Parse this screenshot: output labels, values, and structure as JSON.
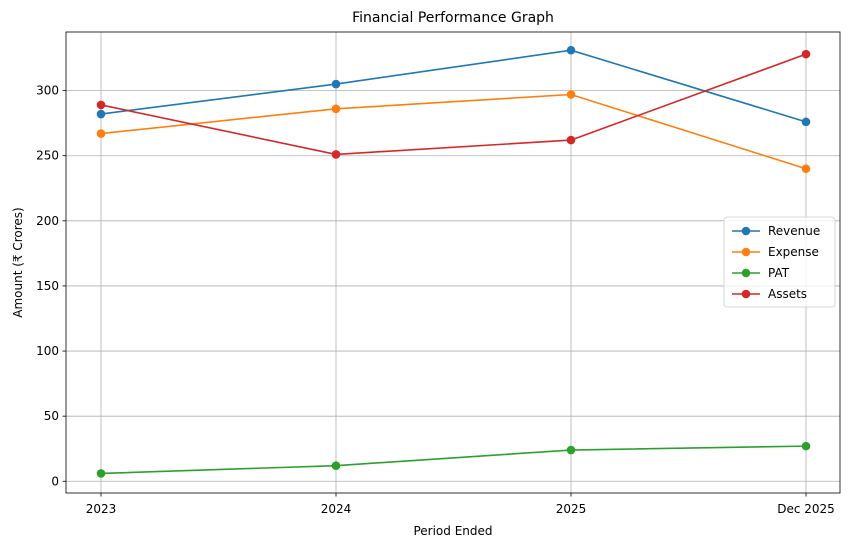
{
  "chart_data": {
    "type": "line",
    "title": "Financial Performance Graph",
    "xlabel": "Period Ended",
    "ylabel": "Amount (₹ Crores)",
    "categories": [
      "2023",
      "2024",
      "2025",
      "Dec 2025"
    ],
    "ylim": [
      -9,
      345
    ],
    "yticks": [
      0,
      50,
      100,
      150,
      200,
      250,
      300
    ],
    "grid": true,
    "legend_position": "center-right",
    "series": [
      {
        "name": "Revenue",
        "color": "#1f77b4",
        "values": [
          282,
          305,
          331,
          276
        ]
      },
      {
        "name": "Expense",
        "color": "#ff7f0e",
        "values": [
          267,
          286,
          297,
          240
        ]
      },
      {
        "name": "PAT",
        "color": "#2ca02c",
        "values": [
          6,
          12,
          24,
          27
        ]
      },
      {
        "name": "Assets",
        "color": "#d62728",
        "values": [
          289,
          251,
          262,
          328
        ]
      }
    ]
  }
}
